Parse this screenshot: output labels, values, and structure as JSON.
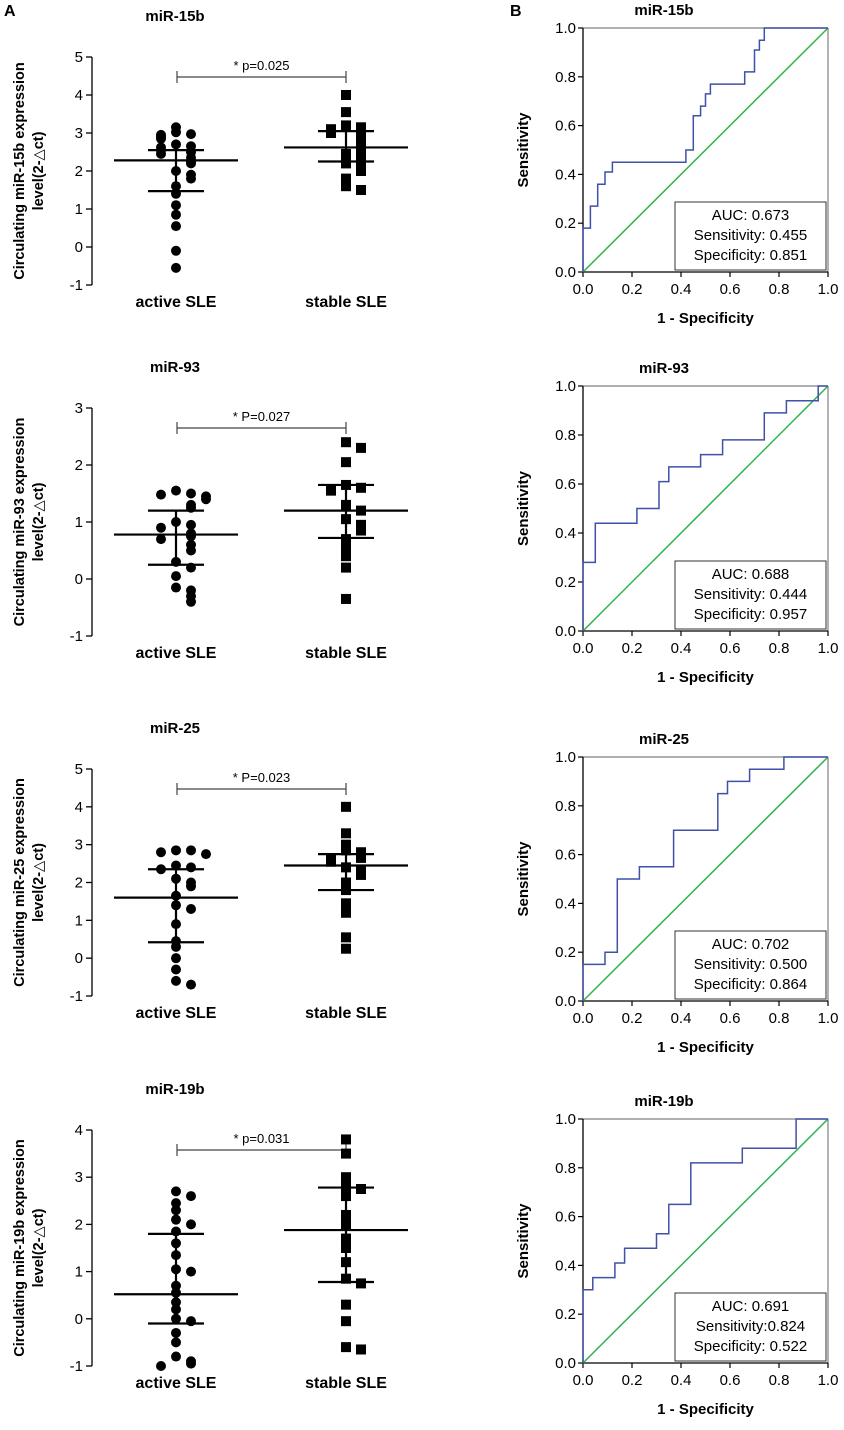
{
  "panel_labels": {
    "a": "A",
    "b": "B"
  },
  "colors": {
    "roc_curve": "#3f51a8",
    "reference": "#2db34a",
    "axis": "#000000",
    "frame": "#808080"
  },
  "chart_data": [
    {
      "type": "scatter",
      "title": "miR-15b",
      "ylabel_lines": [
        "Circulating miR-15b expression",
        "level(2-△ct)"
      ],
      "ylim": [
        -1,
        5
      ],
      "yticks": [
        "-1",
        "0",
        "1",
        "2",
        "3",
        "4",
        "5"
      ],
      "categories": [
        "active SLE",
        "stable SLE"
      ],
      "significance": "* p=0.025",
      "groups": [
        {
          "name": "active SLE",
          "marker": "circle",
          "median": 2.28,
          "q1": 1.47,
          "q3": 2.55,
          "points": [
            3.15,
            3.02,
            2.97,
            2.95,
            2.9,
            2.85,
            2.7,
            2.65,
            2.62,
            2.55,
            2.5,
            2.45,
            2.35,
            2.25,
            2.2,
            2.0,
            1.9,
            1.8,
            1.6,
            1.4,
            1.1,
            0.85,
            0.55,
            -0.1,
            -0.55
          ]
        },
        {
          "name": "stable SLE",
          "marker": "square",
          "median": 2.62,
          "q1": 2.25,
          "q3": 3.05,
          "points": [
            4.0,
            3.55,
            3.2,
            3.15,
            3.1,
            3.05,
            3.0,
            2.9,
            2.8,
            2.7,
            2.6,
            2.45,
            2.35,
            2.2,
            2.1,
            2.0,
            1.8,
            1.6,
            1.5
          ]
        }
      ]
    },
    {
      "type": "scatter",
      "title": "miR-93",
      "ylabel_lines": [
        "Circulating miR-93 expression",
        "level(2-△ct)"
      ],
      "ylim": [
        -1,
        3
      ],
      "yticks": [
        "-1",
        "0",
        "1",
        "2",
        "3"
      ],
      "categories": [
        "active SLE",
        "stable SLE"
      ],
      "significance": "* P=0.027",
      "groups": [
        {
          "name": "active SLE",
          "marker": "circle",
          "median": 0.78,
          "q1": 0.25,
          "q3": 1.2,
          "points": [
            1.55,
            1.5,
            1.48,
            1.45,
            1.4,
            1.3,
            1.25,
            1.0,
            0.95,
            0.9,
            0.8,
            0.75,
            0.7,
            0.6,
            0.5,
            0.3,
            0.2,
            0.05,
            -0.15,
            -0.2,
            -0.3,
            -0.4
          ]
        },
        {
          "name": "stable SLE",
          "marker": "square",
          "median": 1.2,
          "q1": 0.72,
          "q3": 1.65,
          "points": [
            2.4,
            2.3,
            2.05,
            1.65,
            1.6,
            1.55,
            1.3,
            1.2,
            1.05,
            0.95,
            0.85,
            0.7,
            0.55,
            0.4,
            0.2,
            -0.35
          ]
        }
      ]
    },
    {
      "type": "scatter",
      "title": "miR-25",
      "ylabel_lines": [
        "Circulating miR-25 expression",
        "level(2-△ct)"
      ],
      "ylim": [
        -1,
        5
      ],
      "yticks": [
        "-1",
        "0",
        "1",
        "2",
        "3",
        "4",
        "5"
      ],
      "categories": [
        "active SLE",
        "stable SLE"
      ],
      "significance": "* P=0.023",
      "groups": [
        {
          "name": "active SLE",
          "marker": "circle",
          "median": 1.6,
          "q1": 0.42,
          "q3": 2.35,
          "points": [
            2.85,
            2.85,
            2.8,
            2.75,
            2.45,
            2.4,
            2.35,
            2.1,
            2.0,
            1.9,
            1.65,
            1.4,
            1.3,
            0.9,
            0.45,
            0.3,
            0.0,
            -0.3,
            -0.6,
            -0.7
          ]
        },
        {
          "name": "stable SLE",
          "marker": "square",
          "median": 2.45,
          "q1": 1.8,
          "q3": 2.75,
          "points": [
            4.0,
            3.3,
            3.0,
            2.85,
            2.8,
            2.7,
            2.65,
            2.6,
            2.55,
            2.4,
            2.3,
            2.2,
            2.0,
            1.8,
            1.45,
            1.2,
            0.55,
            0.25
          ]
        }
      ]
    },
    {
      "type": "scatter",
      "title": "miR-19b",
      "ylabel_lines": [
        "Circulating miR-19b expression",
        "level(2-△ct)"
      ],
      "ylim": [
        -1,
        4
      ],
      "yticks": [
        "-1",
        "0",
        "1",
        "2",
        "3",
        "4"
      ],
      "categories": [
        "active SLE",
        "stable SLE"
      ],
      "significance": "* p=0.031",
      "groups": [
        {
          "name": "active SLE",
          "marker": "circle",
          "median": 0.52,
          "q1": -0.1,
          "q3": 1.8,
          "points": [
            2.7,
            2.6,
            2.45,
            2.3,
            2.1,
            2.0,
            1.85,
            1.6,
            1.35,
            1.05,
            1.0,
            0.7,
            0.55,
            0.35,
            0.2,
            0.0,
            -0.05,
            -0.3,
            -0.5,
            -0.8,
            -0.9,
            -0.95,
            -1.0
          ]
        },
        {
          "name": "stable SLE",
          "marker": "square",
          "median": 1.88,
          "q1": 0.78,
          "q3": 2.78,
          "points": [
            3.8,
            3.5,
            3.0,
            2.8,
            2.75,
            2.6,
            2.2,
            2.0,
            1.7,
            1.5,
            1.2,
            0.85,
            0.75,
            0.3,
            -0.05,
            -0.6,
            -0.65
          ]
        }
      ]
    },
    {
      "type": "line",
      "title": "miR-15b",
      "xlabel": "1 - Specificity",
      "ylabel": "Sensitivity",
      "xlim": [
        0,
        1
      ],
      "ylim": [
        0,
        1
      ],
      "ticks": [
        "0.0",
        "0.2",
        "0.4",
        "0.6",
        "0.8",
        "1.0"
      ],
      "stats": [
        "AUC: 0.673",
        "Sensitivity: 0.455",
        "Specificity: 0.851"
      ],
      "roc": [
        [
          0,
          0
        ],
        [
          0,
          0.18
        ],
        [
          0.03,
          0.18
        ],
        [
          0.03,
          0.27
        ],
        [
          0.06,
          0.27
        ],
        [
          0.06,
          0.36
        ],
        [
          0.09,
          0.36
        ],
        [
          0.09,
          0.41
        ],
        [
          0.12,
          0.41
        ],
        [
          0.12,
          0.45
        ],
        [
          0.42,
          0.45
        ],
        [
          0.42,
          0.5
        ],
        [
          0.45,
          0.5
        ],
        [
          0.45,
          0.64
        ],
        [
          0.48,
          0.64
        ],
        [
          0.48,
          0.68
        ],
        [
          0.5,
          0.68
        ],
        [
          0.5,
          0.73
        ],
        [
          0.52,
          0.73
        ],
        [
          0.52,
          0.77
        ],
        [
          0.66,
          0.77
        ],
        [
          0.66,
          0.82
        ],
        [
          0.7,
          0.82
        ],
        [
          0.7,
          0.91
        ],
        [
          0.72,
          0.91
        ],
        [
          0.72,
          0.95
        ],
        [
          0.74,
          0.95
        ],
        [
          0.74,
          1.0
        ],
        [
          1,
          1
        ]
      ]
    },
    {
      "type": "line",
      "title": "miR-93",
      "xlabel": "1 - Specificity",
      "ylabel": "Sensitivity",
      "xlim": [
        0,
        1
      ],
      "ylim": [
        0,
        1
      ],
      "ticks": [
        "0.0",
        "0.2",
        "0.4",
        "0.6",
        "0.8",
        "1.0"
      ],
      "stats": [
        "AUC: 0.688",
        "Sensitivity: 0.444",
        "Specificity: 0.957"
      ],
      "roc": [
        [
          0,
          0
        ],
        [
          0,
          0.28
        ],
        [
          0.05,
          0.28
        ],
        [
          0.05,
          0.44
        ],
        [
          0.22,
          0.44
        ],
        [
          0.22,
          0.5
        ],
        [
          0.31,
          0.5
        ],
        [
          0.31,
          0.61
        ],
        [
          0.35,
          0.61
        ],
        [
          0.35,
          0.67
        ],
        [
          0.48,
          0.67
        ],
        [
          0.48,
          0.72
        ],
        [
          0.57,
          0.72
        ],
        [
          0.57,
          0.78
        ],
        [
          0.74,
          0.78
        ],
        [
          0.74,
          0.89
        ],
        [
          0.83,
          0.89
        ],
        [
          0.83,
          0.94
        ],
        [
          0.96,
          0.94
        ],
        [
          0.96,
          1.0
        ],
        [
          1,
          1
        ]
      ]
    },
    {
      "type": "line",
      "title": "miR-25",
      "xlabel": "1 - Specificity",
      "ylabel": "Sensitivity",
      "xlim": [
        0,
        1
      ],
      "ylim": [
        0,
        1
      ],
      "ticks": [
        "0.0",
        "0.2",
        "0.4",
        "0.6",
        "0.8",
        "1.0"
      ],
      "stats": [
        "AUC: 0.702",
        "Sensitivity: 0.500",
        "Specificity: 0.864"
      ],
      "roc": [
        [
          0,
          0
        ],
        [
          0,
          0.15
        ],
        [
          0.09,
          0.15
        ],
        [
          0.09,
          0.2
        ],
        [
          0.14,
          0.2
        ],
        [
          0.14,
          0.5
        ],
        [
          0.23,
          0.5
        ],
        [
          0.23,
          0.55
        ],
        [
          0.37,
          0.55
        ],
        [
          0.37,
          0.7
        ],
        [
          0.55,
          0.7
        ],
        [
          0.55,
          0.85
        ],
        [
          0.59,
          0.85
        ],
        [
          0.59,
          0.9
        ],
        [
          0.68,
          0.9
        ],
        [
          0.68,
          0.95
        ],
        [
          0.82,
          0.95
        ],
        [
          0.82,
          1.0
        ],
        [
          1,
          1
        ]
      ]
    },
    {
      "type": "line",
      "title": "miR-19b",
      "xlabel": "1 - Specificity",
      "ylabel": "Sensitivity",
      "xlim": [
        0,
        1
      ],
      "ylim": [
        0,
        1
      ],
      "ticks": [
        "0.0",
        "0.2",
        "0.4",
        "0.6",
        "0.8",
        "1.0"
      ],
      "stats": [
        "AUC: 0.691",
        "Sensitivity:0.824",
        "Specificity: 0.522"
      ],
      "roc": [
        [
          0,
          0
        ],
        [
          0,
          0.3
        ],
        [
          0.04,
          0.3
        ],
        [
          0.04,
          0.35
        ],
        [
          0.13,
          0.35
        ],
        [
          0.13,
          0.41
        ],
        [
          0.17,
          0.41
        ],
        [
          0.17,
          0.47
        ],
        [
          0.3,
          0.47
        ],
        [
          0.3,
          0.53
        ],
        [
          0.35,
          0.53
        ],
        [
          0.35,
          0.65
        ],
        [
          0.44,
          0.65
        ],
        [
          0.44,
          0.82
        ],
        [
          0.65,
          0.82
        ],
        [
          0.65,
          0.88
        ],
        [
          0.87,
          0.88
        ],
        [
          0.87,
          1.0
        ],
        [
          1,
          1
        ]
      ]
    }
  ]
}
